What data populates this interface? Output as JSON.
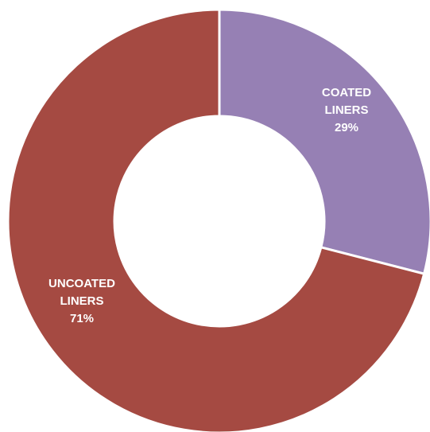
{
  "chart_data": {
    "type": "pie",
    "style": "donut",
    "slices": [
      {
        "label_lines": [
          "COATED",
          "LINERS"
        ],
        "value_label": "29%",
        "value": 29,
        "color": "#9680b4"
      },
      {
        "label_lines": [
          "UNCOATED",
          "LINERS"
        ],
        "value_label": "71%",
        "value": 71,
        "color": "#a54a42"
      }
    ],
    "separator_color": "#ffffff",
    "legend": "none"
  }
}
